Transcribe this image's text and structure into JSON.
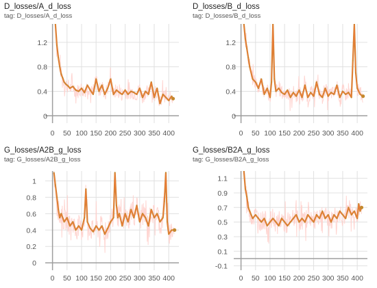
{
  "colors": {
    "raw_line": "#ffd0cc",
    "smooth_line": "#f07a3a",
    "smooth_line_alt": "#c4882e",
    "grid": "#e0e0e0",
    "axis": "#9e9e9e",
    "tick_text": "#555555"
  },
  "chart_data": [
    {
      "type": "line",
      "title": "D_losses/A_d_loss",
      "tag": "tag: D_losses/A_d_loss",
      "xlim": [
        -25,
        435
      ],
      "ylim": [
        -0.12,
        1.5
      ],
      "xticks": [
        0,
        50,
        100,
        150,
        200,
        250,
        300,
        350,
        400
      ],
      "yticks": [
        0,
        0.4,
        0.8,
        1.2
      ],
      "ytick_labels": [
        "0",
        "0.4",
        "0.8",
        "1.2"
      ],
      "grid": true,
      "series": [
        {
          "x": [
            10,
            15,
            20,
            25,
            30,
            35,
            40,
            45,
            50,
            55,
            60,
            70,
            80,
            90,
            100,
            110,
            120,
            130,
            140,
            150,
            160,
            170,
            180,
            190,
            200,
            210,
            220,
            230,
            240,
            250,
            260,
            270,
            280,
            290,
            300,
            310,
            320,
            330,
            340,
            350,
            360,
            370,
            380,
            390,
            400,
            410,
            415
          ],
          "y": [
            1.5,
            1.15,
            0.95,
            0.8,
            0.68,
            0.62,
            0.55,
            0.52,
            0.5,
            0.48,
            0.45,
            0.48,
            0.42,
            0.4,
            0.45,
            0.38,
            0.5,
            0.42,
            0.35,
            0.6,
            0.4,
            0.5,
            0.35,
            0.45,
            0.6,
            0.35,
            0.42,
            0.38,
            0.35,
            0.42,
            0.35,
            0.4,
            0.38,
            0.35,
            0.45,
            0.3,
            0.4,
            0.35,
            0.55,
            0.3,
            0.45,
            0.2,
            0.35,
            0.3,
            0.25,
            0.32,
            0.28
          ],
          "noise": 0.12
        }
      ]
    },
    {
      "type": "line",
      "title": "D_losses/B_d_loss",
      "tag": "tag: D_losses/B_d_loss",
      "xlim": [
        -25,
        435
      ],
      "ylim": [
        -0.12,
        1.5
      ],
      "xticks": [
        0,
        50,
        100,
        150,
        200,
        250,
        300,
        350,
        400
      ],
      "yticks": [
        0,
        0.4,
        0.8,
        1.2
      ],
      "ytick_labels": [
        "0",
        "0.4",
        "0.8",
        "1.2"
      ],
      "grid": true,
      "series": [
        {
          "x": [
            10,
            15,
            20,
            25,
            30,
            40,
            50,
            60,
            70,
            80,
            90,
            100,
            105,
            110,
            115,
            120,
            130,
            140,
            150,
            160,
            170,
            180,
            190,
            200,
            210,
            220,
            230,
            240,
            250,
            260,
            270,
            280,
            290,
            300,
            310,
            320,
            330,
            340,
            350,
            360,
            370,
            380,
            385,
            390,
            395,
            400,
            410,
            420
          ],
          "y": [
            1.5,
            1.25,
            1.1,
            0.95,
            0.8,
            0.6,
            0.55,
            0.45,
            0.6,
            0.35,
            0.45,
            0.3,
            0.55,
            1.5,
            0.6,
            0.4,
            0.45,
            0.38,
            0.35,
            0.42,
            0.3,
            0.38,
            0.32,
            0.42,
            0.3,
            0.5,
            0.3,
            0.38,
            0.32,
            0.55,
            0.35,
            0.3,
            0.45,
            0.32,
            0.38,
            0.35,
            0.5,
            0.3,
            0.4,
            0.35,
            0.38,
            0.3,
            0.9,
            1.5,
            0.7,
            0.45,
            0.35,
            0.32
          ],
          "noise": 0.12
        }
      ]
    },
    {
      "type": "line",
      "title": "G_losses/A2B_g_loss",
      "tag": "tag: G_losses/A2B_g_loss",
      "xlim": [
        -25,
        435
      ],
      "ylim": [
        -0.09,
        1.12
      ],
      "xticks": [
        0,
        50,
        100,
        150,
        200,
        250,
        300,
        350,
        400
      ],
      "yticks": [
        0,
        0.2,
        0.4,
        0.6,
        0.8,
        1
      ],
      "ytick_labels": [
        "0",
        "0.2",
        "0.4",
        "0.6",
        "0.8",
        "1"
      ],
      "grid": true,
      "series": [
        {
          "x": [
            5,
            10,
            15,
            20,
            25,
            30,
            40,
            50,
            60,
            70,
            80,
            90,
            100,
            110,
            115,
            120,
            130,
            140,
            150,
            160,
            170,
            180,
            190,
            200,
            210,
            215,
            220,
            225,
            230,
            240,
            250,
            260,
            270,
            280,
            290,
            300,
            310,
            320,
            330,
            340,
            350,
            360,
            370,
            380,
            385,
            390,
            395,
            400,
            410,
            420
          ],
          "y": [
            1.1,
            0.95,
            0.8,
            0.65,
            0.55,
            0.6,
            0.5,
            0.55,
            0.45,
            0.5,
            0.4,
            0.45,
            0.4,
            0.55,
            0.9,
            0.5,
            0.42,
            0.38,
            0.45,
            0.4,
            0.45,
            0.35,
            0.42,
            0.5,
            0.55,
            1.1,
            0.7,
            0.55,
            0.6,
            0.45,
            0.6,
            0.5,
            0.65,
            0.55,
            0.7,
            0.5,
            0.6,
            0.55,
            0.45,
            0.65,
            0.55,
            0.6,
            0.5,
            0.55,
            0.75,
            1.1,
            0.5,
            0.35,
            0.4,
            0.4
          ],
          "noise": 0.14
        }
      ]
    },
    {
      "type": "line",
      "title": "G_losses/B2A_g_loss",
      "tag": "tag: G_losses/B2A_g_loss",
      "xlim": [
        -25,
        435
      ],
      "ylim": [
        -0.16,
        1.2
      ],
      "xticks": [
        0,
        50,
        100,
        150,
        200,
        250,
        300,
        350,
        400
      ],
      "yticks": [
        -0.1,
        0.1,
        0.3,
        0.5,
        0.7,
        0.9,
        1.1
      ],
      "ytick_labels": [
        "-0.1",
        "0.1",
        "0.3",
        "0.5",
        "0.7",
        "0.9",
        "1.1"
      ],
      "grid": true,
      "series": [
        {
          "x": [
            10,
            15,
            20,
            25,
            30,
            35,
            40,
            50,
            60,
            70,
            80,
            90,
            100,
            110,
            120,
            130,
            140,
            150,
            160,
            170,
            180,
            190,
            200,
            210,
            220,
            230,
            240,
            250,
            260,
            270,
            280,
            290,
            300,
            310,
            320,
            330,
            340,
            350,
            360,
            370,
            380,
            390,
            400,
            405,
            410,
            415
          ],
          "y": [
            1.2,
            0.95,
            0.85,
            0.7,
            0.65,
            0.6,
            0.55,
            0.6,
            0.55,
            0.5,
            0.55,
            0.45,
            0.5,
            0.55,
            0.5,
            0.45,
            0.55,
            0.5,
            0.45,
            0.5,
            0.55,
            0.6,
            0.5,
            0.55,
            0.5,
            0.6,
            0.55,
            0.5,
            0.6,
            0.55,
            0.65,
            0.55,
            0.6,
            0.5,
            0.6,
            0.55,
            0.65,
            0.6,
            0.55,
            0.7,
            0.6,
            0.65,
            0.55,
            0.75,
            0.65,
            0.7
          ],
          "noise": 0.14
        }
      ]
    }
  ]
}
